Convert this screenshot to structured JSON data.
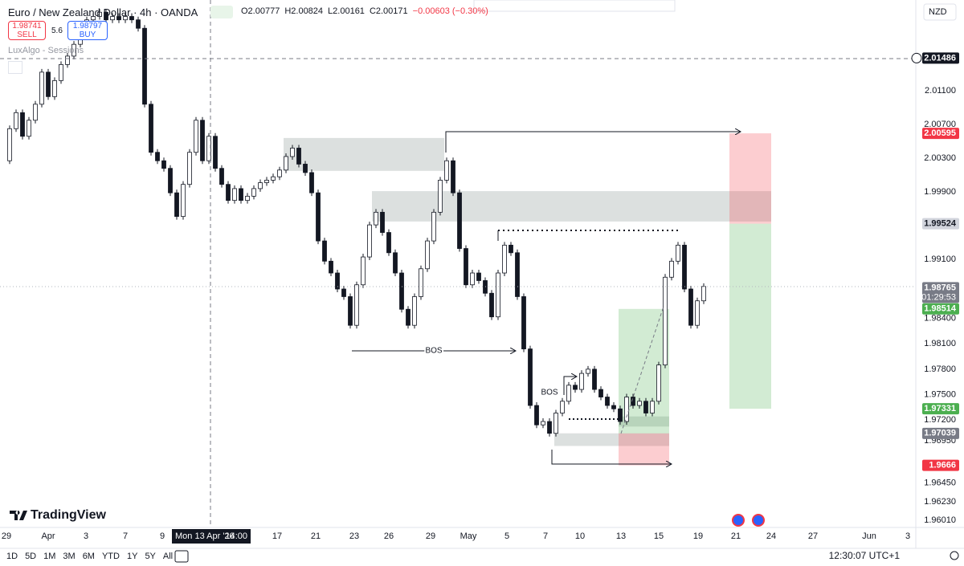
{
  "header": {
    "symbol": "Euro / New Zealand Dollar · 4h · OANDA",
    "ohlc": [
      "O2.00777",
      "H2.00824",
      "L2.00161",
      "C2.00171",
      "−0.00603 (−0.30%)"
    ],
    "sell_price": "1.98741",
    "sell": "SELL",
    "spread": "5.6",
    "buy_price": "1.98797",
    "buy": "BUY",
    "indicator": "LuxAlgo - Sessions",
    "currency": "NZD"
  },
  "chart_data": {
    "type": "candlestick",
    "closes": [
      2.0027,
      2.0065,
      2.0084,
      2.0056,
      2.0075,
      2.0094,
      2.0132,
      2.0103,
      2.0122,
      2.0141,
      2.0151,
      2.0165,
      2.0179,
      2.0194,
      2.0198,
      2.0203,
      2.0194,
      2.0198,
      2.0194,
      2.0198,
      2.0194,
      2.0184,
      2.0094,
      2.0037,
      2.0027,
      2.0018,
      1.9989,
      1.9961,
      1.9999,
      2.0037,
      2.0075,
      2.0027,
      2.0056,
      2.0018,
      1.9999,
      1.998,
      1.9994,
      1.998,
      1.9985,
      1.9994,
      2.0001,
      2.0004,
      2.0008,
      2.0016,
      2.0032,
      2.0042,
      2.0023,
      2.0013,
      1.9989,
      1.9932,
      1.9908,
      1.9894,
      1.9875,
      1.9866,
      1.9832,
      1.988,
      1.9913,
      1.9951,
      1.9966,
      1.9942,
      1.9918,
      1.9894,
      1.9851,
      1.9832,
      1.9866,
      1.9899,
      1.9932,
      1.9966,
      2.0004,
      2.0027,
      1.9989,
      1.9923,
      1.988,
      1.9894,
      1.9885,
      1.987,
      1.9842,
      1.9894,
      1.9927,
      1.9918,
      1.9866,
      1.9804,
      1.9737,
      1.9714,
      1.9718,
      1.9704,
      1.9728,
      1.9742,
      1.9761,
      1.9756,
      1.9775,
      1.978,
      1.9756,
      1.9747,
      1.9737,
      1.9733,
      1.9718,
      1.9747,
      1.9737,
      1.9742,
      1.9728,
      1.9742,
      1.9785,
      1.9889,
      1.9908,
      1.9927,
      1.9875,
      1.9832,
      1.9861,
      1.9878
    ],
    "up_color": "#ffffff",
    "down_color": "#131722",
    "ylim": [
      1.95677,
      2.02175
    ],
    "yticks": [
      {
        "value": 2.011,
        "label": "2.01100"
      },
      {
        "value": 2.007,
        "label": "2.00700"
      },
      {
        "value": 2.003,
        "label": "2.00300"
      },
      {
        "value": 1.999,
        "label": "1.99900"
      },
      {
        "value": 1.991,
        "label": "1.99100"
      },
      {
        "value": 1.984,
        "label": "1.98400"
      },
      {
        "value": 1.981,
        "label": "1.98100"
      },
      {
        "value": 1.978,
        "label": "1.97800"
      },
      {
        "value": 1.975,
        "label": "1.97500"
      },
      {
        "value": 1.972,
        "label": "1.97200"
      },
      {
        "value": 1.9695,
        "label": "1.96950"
      },
      {
        "value": 1.9645,
        "label": "1.96450"
      },
      {
        "value": 1.9623,
        "label": "1.96230"
      },
      {
        "value": 1.9601,
        "label": "1.96010"
      }
    ],
    "xticks": [
      "29",
      "Apr",
      "3",
      "7",
      "9",
      "17",
      "21",
      "23",
      "26",
      "29",
      "May",
      "5",
      "7",
      "10",
      "13",
      "15",
      "19",
      "21",
      "24",
      "27",
      "Jun",
      "3"
    ],
    "crosshair": {
      "date": "Mon 13 Apr '26",
      "time": "14:00",
      "price": 2.01486
    },
    "price_tags": [
      {
        "value": 2.01486,
        "color": "#131722",
        "text_color": "#ffffff"
      },
      {
        "value": 2.00595,
        "color": "#f23645",
        "text_color": "#ffffff"
      },
      {
        "value": 1.99524,
        "color": "#d1d4dc",
        "text_color": "#131722"
      },
      {
        "value": 1.98765,
        "color": "#787b86",
        "text_color": "#ffffff"
      },
      {
        "value": 1.98514,
        "color": "#4caf50",
        "text_color": "#ffffff"
      },
      {
        "value": 1.97331,
        "color": "#4caf50",
        "text_color": "#ffffff"
      },
      {
        "value": 1.97039,
        "color": "#787b86",
        "text_color": "#ffffff"
      },
      {
        "value": 1.9666,
        "color": "#f23645",
        "text_color": "#ffffff"
      }
    ],
    "countdown": "01:29:53",
    "zones": [
      {
        "top": 2.0054,
        "bottom": 2.0015
      },
      {
        "top": 1.9991,
        "bottom": 1.9955
      },
      {
        "top": 1.9704,
        "bottom": 1.9689
      },
      {
        "top": 1.9724,
        "bottom": 1.9712
      }
    ],
    "zone_color": "#b2bab8",
    "annotations": [
      "BOS",
      "BOS"
    ]
  },
  "footer": {
    "ranges": [
      "1D",
      "5D",
      "1M",
      "3M",
      "6M",
      "YTD",
      "1Y",
      "5Y",
      "All"
    ],
    "clock": "12:30:07 UTC+1",
    "logo": "TradingView"
  }
}
